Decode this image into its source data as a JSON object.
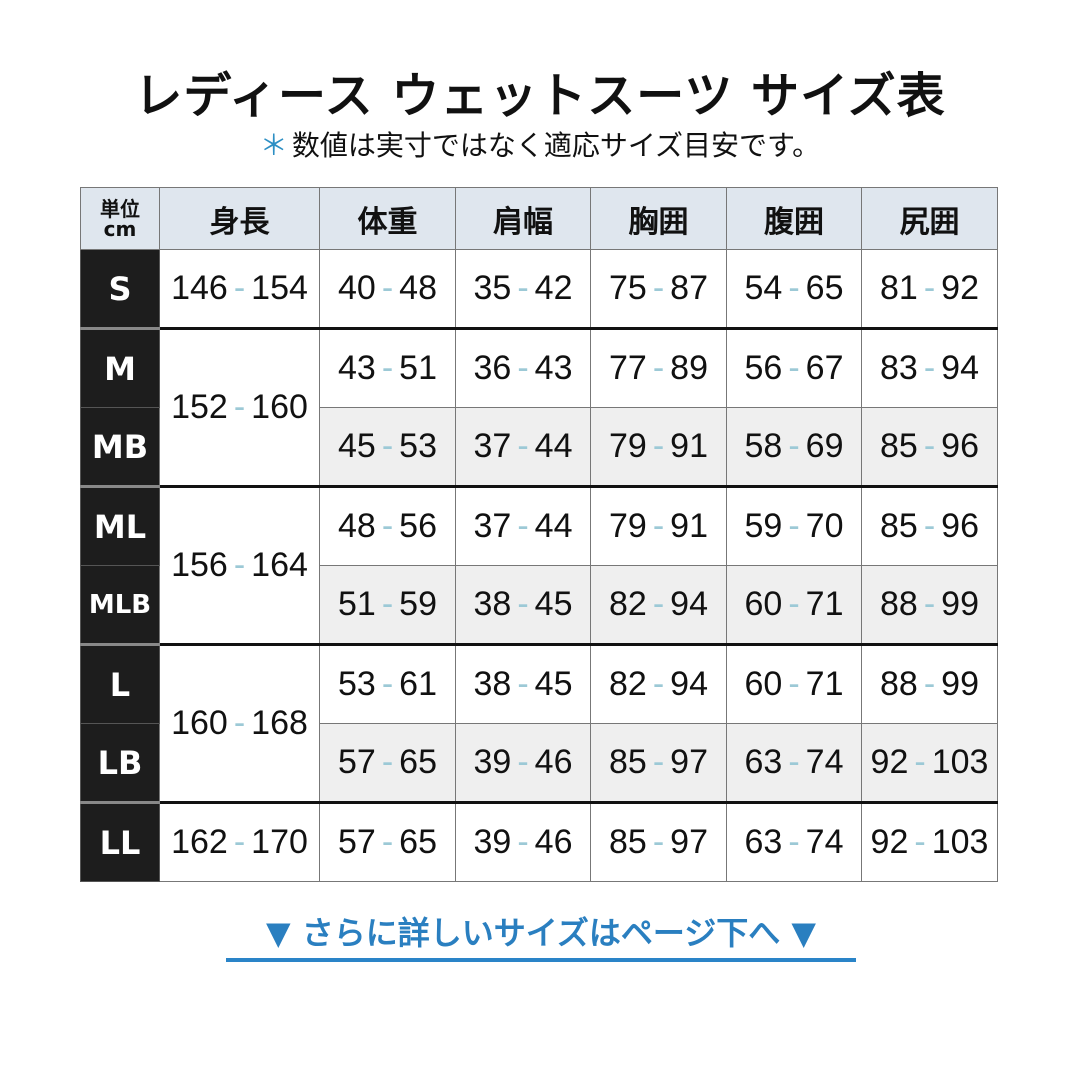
{
  "title": "レディース ウェットスーツ サイズ表",
  "note": {
    "asterisk": "＊",
    "text": "数値は実寸ではなく適応サイズ目安です。"
  },
  "table": {
    "unit_label": [
      "単位",
      "cm"
    ],
    "headers": [
      "身長",
      "体重",
      "肩幅",
      "胸囲",
      "腹囲",
      "尻囲"
    ],
    "rows": [
      {
        "size": "S",
        "height": "146-154",
        "height_rowspan": 1,
        "values": [
          "40-48",
          "35-42",
          "75-87",
          "54-65",
          "81-92"
        ]
      },
      {
        "size": "M",
        "height": "152-160",
        "height_rowspan": 2,
        "values": [
          "43-51",
          "36-43",
          "77-89",
          "56-67",
          "83-94"
        ]
      },
      {
        "size": "MB",
        "height": null,
        "values": [
          "45-53",
          "37-44",
          "79-91",
          "58-69",
          "85-96"
        ]
      },
      {
        "size": "ML",
        "height": "156-164",
        "height_rowspan": 2,
        "values": [
          "48-56",
          "37-44",
          "79-91",
          "59-70",
          "85-96"
        ]
      },
      {
        "size": "MLB",
        "height": null,
        "values": [
          "51-59",
          "38-45",
          "82-94",
          "60-71",
          "88-99"
        ]
      },
      {
        "size": "L",
        "height": "160-168",
        "height_rowspan": 2,
        "values": [
          "53-61",
          "38-45",
          "82-94",
          "60-71",
          "88-99"
        ]
      },
      {
        "size": "LB",
        "height": null,
        "values": [
          "57-65",
          "39-46",
          "85-97",
          "63-74",
          "92-103"
        ]
      },
      {
        "size": "LL",
        "height": "162-170",
        "height_rowspan": 1,
        "values": [
          "57-65",
          "39-46",
          "85-97",
          "63-74",
          "92-103"
        ]
      }
    ]
  },
  "footer": {
    "text": "▼ さらに詳しいサイズはページ下へ ▼",
    "color": "#2a7fc0"
  },
  "colors": {
    "header_bg": "#dfe6ee",
    "size_bg": "#1d1d1d",
    "dash": "#9cc9d6",
    "sub_row_bg": "#efefef"
  }
}
